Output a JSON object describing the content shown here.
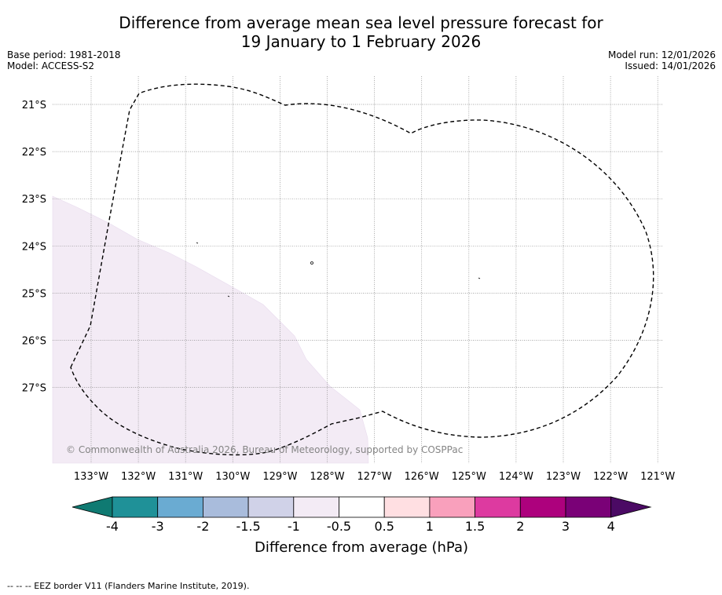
{
  "title": {
    "line1": "Difference from average mean sea level pressure forecast for",
    "line2": "19 January to 1 February 2026"
  },
  "meta": {
    "base_period": "Base period: 1981-2018",
    "model": "Model: ACCESS-S2",
    "model_run": "Model run: 12/01/2026",
    "issued": "Issued: 14/01/2026"
  },
  "map": {
    "longitude_labels": [
      "133°W",
      "132°W",
      "131°W",
      "130°W",
      "129°W",
      "128°W",
      "127°W",
      "126°W",
      "125°W",
      "124°W",
      "123°W",
      "122°W",
      "121°W"
    ],
    "latitude_labels": [
      "21°S",
      "22°S",
      "23°S",
      "24°S",
      "25°S",
      "26°S",
      "27°S"
    ],
    "copyright": "© Commonwealth of Australia 2026, Bureau of Meteorology, supported by COSPPac",
    "shaded_anomaly_class": "-1 to -0.5"
  },
  "colorbar": {
    "label": "Difference from average (hPa)",
    "ticks": [
      "-4",
      "-3",
      "-2",
      "-1.5",
      "-1",
      "-0.5",
      "0.5",
      "1",
      "1.5",
      "2",
      "3",
      "4"
    ],
    "colors": [
      "#0f7a72",
      "#1f9198",
      "#6aabd2",
      "#a9bcdc",
      "#d0d2e8",
      "#f3ebf5",
      "#ffffff",
      "#ffdfe2",
      "#f9a0bc",
      "#dd3aa0",
      "#ad017d",
      "#7a0177",
      "#4b0a64"
    ],
    "shaded_color": "#f3ebf5"
  },
  "footer": {
    "legend": "--  --  -- EEZ border V11 (Flanders Marine Institute, 2019)."
  }
}
